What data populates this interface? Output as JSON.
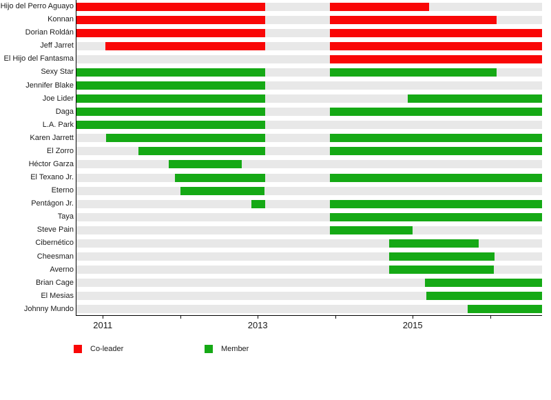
{
  "chart_data": {
    "type": "timeline",
    "x_axis": {
      "min": 2010.66,
      "max": 2016.67,
      "ticks": [
        {
          "value": 2011,
          "label": "2011"
        },
        {
          "value": 2012,
          "label": ""
        },
        {
          "value": 2013,
          "label": "2013"
        },
        {
          "value": 2014,
          "label": ""
        },
        {
          "value": 2015,
          "label": "2015"
        },
        {
          "value": 2016,
          "label": ""
        }
      ]
    },
    "legend": [
      {
        "role": "co-leader",
        "label": "Co-leader"
      },
      {
        "role": "member",
        "label": "Member"
      }
    ],
    "colors": {
      "co-leader": "#f90707",
      "member": "#15a915",
      "track": "#e8e8e8",
      "axis": "#000000"
    },
    "rows": [
      {
        "name": "Hijo del Perro Aguayo",
        "segments": [
          {
            "role": "co-leader",
            "start": 2010.66,
            "end": 2013.1
          },
          {
            "role": "co-leader",
            "start": 2013.93,
            "end": 2015.21
          }
        ]
      },
      {
        "name": "Konnan",
        "segments": [
          {
            "role": "co-leader",
            "start": 2010.66,
            "end": 2013.1
          },
          {
            "role": "co-leader",
            "start": 2013.93,
            "end": 2016.08
          }
        ]
      },
      {
        "name": "Dorian Roldán",
        "segments": [
          {
            "role": "co-leader",
            "start": 2010.66,
            "end": 2013.1
          },
          {
            "role": "co-leader",
            "start": 2013.93,
            "end": 2016.67
          }
        ]
      },
      {
        "name": "Jeff Jarret",
        "segments": [
          {
            "role": "co-leader",
            "start": 2011.03,
            "end": 2013.1
          },
          {
            "role": "co-leader",
            "start": 2013.93,
            "end": 2016.67
          }
        ]
      },
      {
        "name": "El Hijo del Fantasma",
        "segments": [
          {
            "role": "co-leader",
            "start": 2013.93,
            "end": 2016.67
          }
        ]
      },
      {
        "name": "Sexy Star",
        "segments": [
          {
            "role": "member",
            "start": 2010.66,
            "end": 2013.1
          },
          {
            "role": "member",
            "start": 2013.93,
            "end": 2016.08
          }
        ]
      },
      {
        "name": "Jennifer Blake",
        "segments": [
          {
            "role": "member",
            "start": 2010.66,
            "end": 2013.1
          }
        ]
      },
      {
        "name": "Joe Lider",
        "segments": [
          {
            "role": "member",
            "start": 2010.66,
            "end": 2013.1
          },
          {
            "role": "member",
            "start": 2014.94,
            "end": 2016.67
          }
        ]
      },
      {
        "name": "Daga",
        "segments": [
          {
            "role": "member",
            "start": 2010.66,
            "end": 2013.1
          },
          {
            "role": "member",
            "start": 2013.93,
            "end": 2016.67
          }
        ]
      },
      {
        "name": "L.A. Park",
        "segments": [
          {
            "role": "member",
            "start": 2010.66,
            "end": 2013.1
          }
        ]
      },
      {
        "name": "Karen Jarrett",
        "segments": [
          {
            "role": "member",
            "start": 2011.04,
            "end": 2013.1
          },
          {
            "role": "member",
            "start": 2013.93,
            "end": 2016.67
          }
        ]
      },
      {
        "name": "El Zorro",
        "segments": [
          {
            "role": "member",
            "start": 2011.46,
            "end": 2013.1
          },
          {
            "role": "member",
            "start": 2013.93,
            "end": 2016.67
          }
        ]
      },
      {
        "name": "Héctor Garza",
        "segments": [
          {
            "role": "member",
            "start": 2011.85,
            "end": 2012.79
          }
        ]
      },
      {
        "name": "El Texano Jr.",
        "segments": [
          {
            "role": "member",
            "start": 2011.93,
            "end": 2013.1
          },
          {
            "role": "member",
            "start": 2013.93,
            "end": 2016.67
          }
        ]
      },
      {
        "name": "Eterno",
        "segments": [
          {
            "role": "member",
            "start": 2012.0,
            "end": 2013.09
          }
        ]
      },
      {
        "name": "Pentágon Jr.",
        "segments": [
          {
            "role": "member",
            "start": 2012.92,
            "end": 2013.1
          },
          {
            "role": "member",
            "start": 2013.93,
            "end": 2016.67
          }
        ]
      },
      {
        "name": "Taya",
        "segments": [
          {
            "role": "member",
            "start": 2013.93,
            "end": 2016.67
          }
        ]
      },
      {
        "name": "Steve Pain",
        "segments": [
          {
            "role": "member",
            "start": 2013.93,
            "end": 2015.0
          }
        ]
      },
      {
        "name": "Cibernético",
        "segments": [
          {
            "role": "member",
            "start": 2014.7,
            "end": 2015.85
          }
        ]
      },
      {
        "name": "Cheesman",
        "segments": [
          {
            "role": "member",
            "start": 2014.7,
            "end": 2016.06
          }
        ]
      },
      {
        "name": "Averno",
        "segments": [
          {
            "role": "member",
            "start": 2014.7,
            "end": 2016.05
          }
        ]
      },
      {
        "name": "Brian Cage",
        "segments": [
          {
            "role": "member",
            "start": 2015.16,
            "end": 2016.67
          }
        ]
      },
      {
        "name": "El Mesias",
        "segments": [
          {
            "role": "member",
            "start": 2015.18,
            "end": 2016.67
          }
        ]
      },
      {
        "name": "Johnny Mundo",
        "segments": [
          {
            "role": "member",
            "start": 2015.71,
            "end": 2016.67
          }
        ]
      }
    ]
  }
}
